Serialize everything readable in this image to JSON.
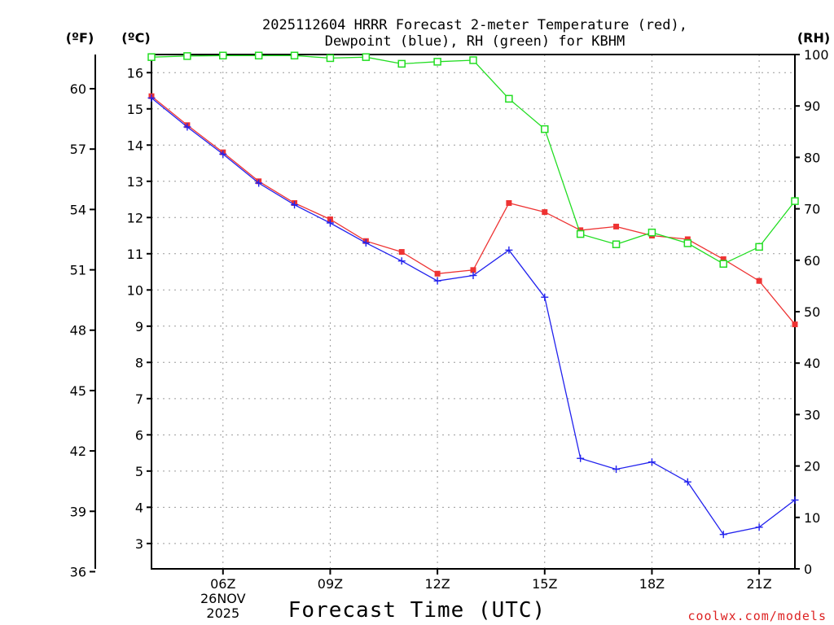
{
  "chart_data": {
    "type": "line",
    "title_line1": "2025112604 HRRR Forecast 2-meter Temperature (red),",
    "title_line2": "Dewpoint (blue), RH (green) for KBHM",
    "xlabel": "Forecast Time (UTC)",
    "unit_f": "(ºF)",
    "unit_c": "(ºC)",
    "unit_rh": "(RH)",
    "x": [
      4,
      5,
      6,
      7,
      8,
      9,
      10,
      11,
      12,
      13,
      14,
      15,
      16,
      17,
      18,
      19,
      20,
      21,
      22
    ],
    "xlim": [
      4,
      22
    ],
    "x_ticks": [
      {
        "x": 6,
        "label": "06Z",
        "sub1": "26NOV",
        "sub2": "2025"
      },
      {
        "x": 9,
        "label": "09Z"
      },
      {
        "x": 12,
        "label": "12Z"
      },
      {
        "x": 15,
        "label": "15Z"
      },
      {
        "x": 18,
        "label": "18Z"
      },
      {
        "x": 21,
        "label": "21Z"
      }
    ],
    "y_left_c": {
      "lim": [
        2.3,
        16.5
      ],
      "ticks": [
        "3",
        "4",
        "5",
        "6",
        "7",
        "8",
        "9",
        "10",
        "11",
        "12",
        "13",
        "14",
        "15",
        "16"
      ]
    },
    "y_left_f": {
      "ticks": [
        "36",
        "39",
        "42",
        "45",
        "48",
        "51",
        "54",
        "57",
        "60"
      ]
    },
    "y_right_rh": {
      "lim": [
        0,
        100
      ],
      "ticks": [
        "0",
        "10",
        "20",
        "30",
        "40",
        "50",
        "60",
        "70",
        "80",
        "90",
        "100"
      ]
    },
    "series": [
      {
        "name": "Temperature",
        "axis": "C",
        "color": "#ee3333",
        "marker": "filled-square",
        "values": [
          15.35,
          14.55,
          13.8,
          13.0,
          12.4,
          11.95,
          11.35,
          11.05,
          10.45,
          10.55,
          12.4,
          12.15,
          11.65,
          11.75,
          11.5,
          11.4,
          10.85,
          10.25,
          9.05
        ]
      },
      {
        "name": "Dewpoint",
        "axis": "C",
        "color": "#2222ee",
        "marker": "plus",
        "values": [
          15.3,
          14.5,
          13.75,
          12.95,
          12.35,
          11.85,
          11.3,
          10.8,
          10.25,
          10.4,
          11.1,
          9.8,
          5.35,
          5.05,
          5.25,
          4.7,
          3.25,
          3.45,
          4.2
        ]
      },
      {
        "name": "RH",
        "axis": "RH",
        "color": "#22dd22",
        "marker": "open-square",
        "values": [
          99.5,
          99.7,
          99.8,
          99.8,
          99.8,
          99.3,
          99.5,
          98.2,
          98.6,
          98.9,
          91.4,
          85.5,
          65.1,
          63.1,
          65.4,
          63.3,
          59.3,
          62.6,
          71.5
        ]
      }
    ]
  },
  "footer": {
    "credit": "coolwx.com/models"
  },
  "colors": {
    "credit": "#dd2222"
  }
}
